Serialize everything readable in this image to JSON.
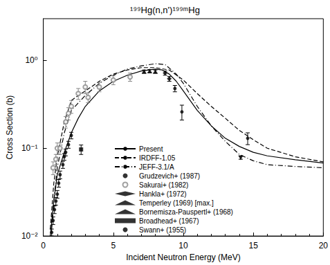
{
  "chart_data": {
    "type": "line",
    "title": "¹⁹⁹Hg(n,n')¹⁹⁹ᵐHg",
    "x_label": "Incident Neutron Energy (MeV)",
    "y_label": "Cross Section (b)",
    "xlim": [
      0,
      20
    ],
    "xticks": [
      0,
      5,
      10,
      15,
      20
    ],
    "ylim": [
      0.01,
      3
    ],
    "yticks": [
      {
        "value": 0.01,
        "label": "10⁻²"
      },
      {
        "value": 0.1,
        "label": "10⁻¹"
      },
      {
        "value": 1,
        "label": "10⁰"
      }
    ],
    "log": "y",
    "grid": false,
    "legend": "bottom",
    "series": [
      {
        "name": "Present",
        "type": "line",
        "color": "#000000",
        "line_style": "solid",
        "x": [
          0.5,
          0.75,
          1,
          1.5,
          2,
          2.5,
          3,
          4,
          5,
          6,
          7,
          8,
          8.5,
          9,
          9.5,
          10,
          11,
          12,
          13,
          14,
          15,
          16,
          18,
          20
        ],
        "values": [
          0.01,
          0.025,
          0.05,
          0.09,
          0.15,
          0.22,
          0.3,
          0.45,
          0.58,
          0.68,
          0.76,
          0.8,
          0.78,
          0.7,
          0.58,
          0.45,
          0.27,
          0.18,
          0.13,
          0.105,
          0.09,
          0.082,
          0.074,
          0.068
        ]
      },
      {
        "name": "IRDFF-1.05",
        "type": "line",
        "color": "#000000",
        "line_style": "dashed",
        "x": [
          0.5,
          0.75,
          1,
          1.5,
          2,
          2.5,
          3,
          4,
          5,
          6,
          7,
          8,
          9,
          10,
          11,
          12,
          13,
          14,
          15,
          16,
          18,
          20
        ],
        "values": [
          0.012,
          0.04,
          0.08,
          0.2,
          0.35,
          0.4,
          0.45,
          0.58,
          0.7,
          0.78,
          0.83,
          0.83,
          0.78,
          0.6,
          0.42,
          0.3,
          0.22,
          0.16,
          0.125,
          0.1,
          0.08,
          0.07
        ]
      },
      {
        "name": "JEFF-3.1/A",
        "type": "line",
        "color": "#000000",
        "line_style": "dashdot",
        "x": [
          0.6,
          0.8,
          1,
          1.5,
          2,
          3,
          4,
          5,
          6,
          7,
          8,
          8.7,
          9.5,
          10,
          11,
          12,
          13,
          14,
          15,
          16,
          18,
          20
        ],
        "values": [
          0.012,
          0.03,
          0.06,
          0.15,
          0.27,
          0.4,
          0.55,
          0.68,
          0.8,
          0.87,
          0.92,
          0.9,
          0.7,
          0.55,
          0.3,
          0.18,
          0.12,
          0.085,
          0.072,
          0.065,
          0.062,
          0.06
        ]
      },
      {
        "name": "Grudzevich+ (1987)",
        "type": "scatter",
        "color": "#000000",
        "marker": "circle",
        "x": [
          0.6,
          0.7,
          0.8,
          0.9,
          1.0,
          1.1,
          1.2,
          1.4,
          1.5,
          1.6,
          1.8,
          2.0
        ],
        "values": [
          0.011,
          0.015,
          0.02,
          0.025,
          0.03,
          0.04,
          0.05,
          0.065,
          0.08,
          0.09,
          0.11,
          0.14
        ],
        "errors": [
          0.001,
          0.0015,
          0.002,
          0.0025,
          0.003,
          0.004,
          0.005,
          0.006,
          0.007,
          0.008,
          0.01,
          0.012
        ]
      },
      {
        "name": "Sakurai+ (1982)",
        "type": "scatter",
        "color": "#888888",
        "marker": "open_circle",
        "x": [
          0.7,
          0.9,
          1.0,
          1.2,
          1.6,
          1.8,
          2.0,
          2.5,
          3.0,
          3.2,
          4.0,
          5.0,
          6.2
        ],
        "values": [
          0.06,
          0.075,
          0.1,
          0.1,
          0.2,
          0.25,
          0.3,
          0.42,
          0.5,
          0.38,
          0.5,
          0.6,
          0.65
        ],
        "errors": [
          0.01,
          0.01,
          0.015,
          0.015,
          0.03,
          0.04,
          0.05,
          0.06,
          0.08,
          0.05,
          0.06,
          0.07,
          0.07
        ]
      },
      {
        "name": "Hankla+ (1972)",
        "type": "scatter",
        "color": "#000000",
        "marker": "diamond",
        "x": [
          8.7,
          9.0
        ],
        "values": [
          0.72,
          0.62
        ],
        "errors": [
          0.04,
          0.04
        ]
      },
      {
        "name": "Temperley (1969) [max.]",
        "type": "scatter",
        "color": "#000000",
        "marker": "triangle_down",
        "x": [
          14.1
        ],
        "values": [
          0.078
        ],
        "errors": [
          0.003
        ]
      },
      {
        "name": "Bornemisza-Pauspertl+ (1968)",
        "type": "scatter",
        "color": "#000000",
        "marker": "triangle",
        "x": [
          7.2,
          7.6,
          8.0
        ],
        "values": [
          0.75,
          0.76,
          0.75
        ],
        "errors": [
          0.03,
          0.03,
          0.03
        ]
      },
      {
        "name": "Broadhead+ (1967)",
        "type": "scatter",
        "color": "#000000",
        "marker": "square",
        "x": [
          2.7
        ],
        "values": [
          0.097
        ],
        "errors": [
          0.012
        ]
      },
      {
        "name": "Swann+ (1955)",
        "type": "scatter",
        "color": "#000000",
        "marker": "circle",
        "x": [
          9.4,
          9.9,
          14.6
        ],
        "values": [
          0.48,
          0.26,
          0.13
        ],
        "errors": [
          0.04,
          0.05,
          0.02
        ]
      }
    ]
  }
}
